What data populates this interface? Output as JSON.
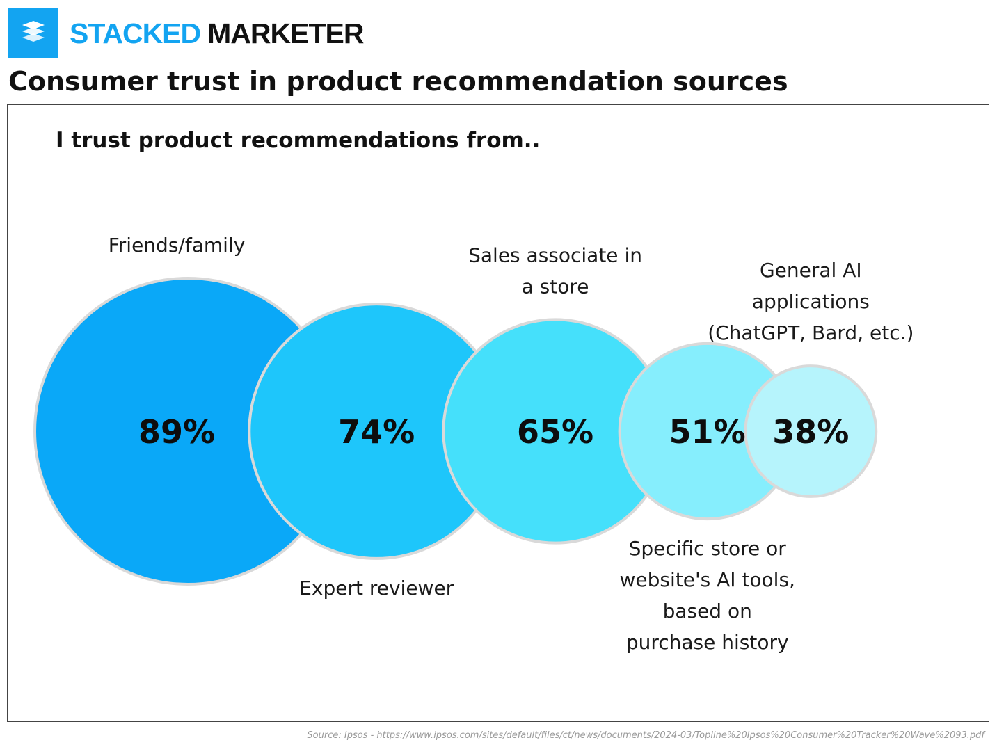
{
  "brand": {
    "name_part1": "STACKED",
    "name_part2": "MARKETER",
    "color": "#13a4f1",
    "icon": "stacked-layers-icon"
  },
  "page_title": "Consumer trust in product recommendation sources",
  "source_text": "Source: Ipsos - https://www.ipsos.com/sites/default/files/ct/news/documents/2024-03/Topline%20Ipsos%20Consumer%20Tracker%20Wave%2093.pdf",
  "chart_data": {
    "type": "bubble",
    "title": "I trust product recommendations from..",
    "unit": "%",
    "categories": [
      "Friends/family",
      "Expert reviewer",
      "Sales associate  in a store",
      "Specific store or website's AI tools, based on purchase history",
      "General AI applications (ChatGPT, Bard, etc.)"
    ],
    "values": [
      89,
      74,
      65,
      51,
      38
    ],
    "value_labels": [
      "89%",
      "74%",
      "65%",
      "51%",
      "38%"
    ],
    "label_lines": [
      [
        "Friends/family"
      ],
      [
        "Expert reviewer"
      ],
      [
        "Sales associate  in",
        "a store"
      ],
      [
        "Specific store or",
        "website's AI tools,",
        "based on",
        "purchase history"
      ],
      [
        "General AI",
        "applications",
        "(ChatGPT, Bard, etc.)"
      ]
    ],
    "label_placement": [
      "above",
      "below",
      "above",
      "below",
      "above"
    ],
    "colors": [
      "#0aa8f8",
      "#1ec6fb",
      "#45e0fb",
      "#86eefd",
      "#b6f4fc"
    ],
    "outline_color": "#d9d9d9"
  }
}
